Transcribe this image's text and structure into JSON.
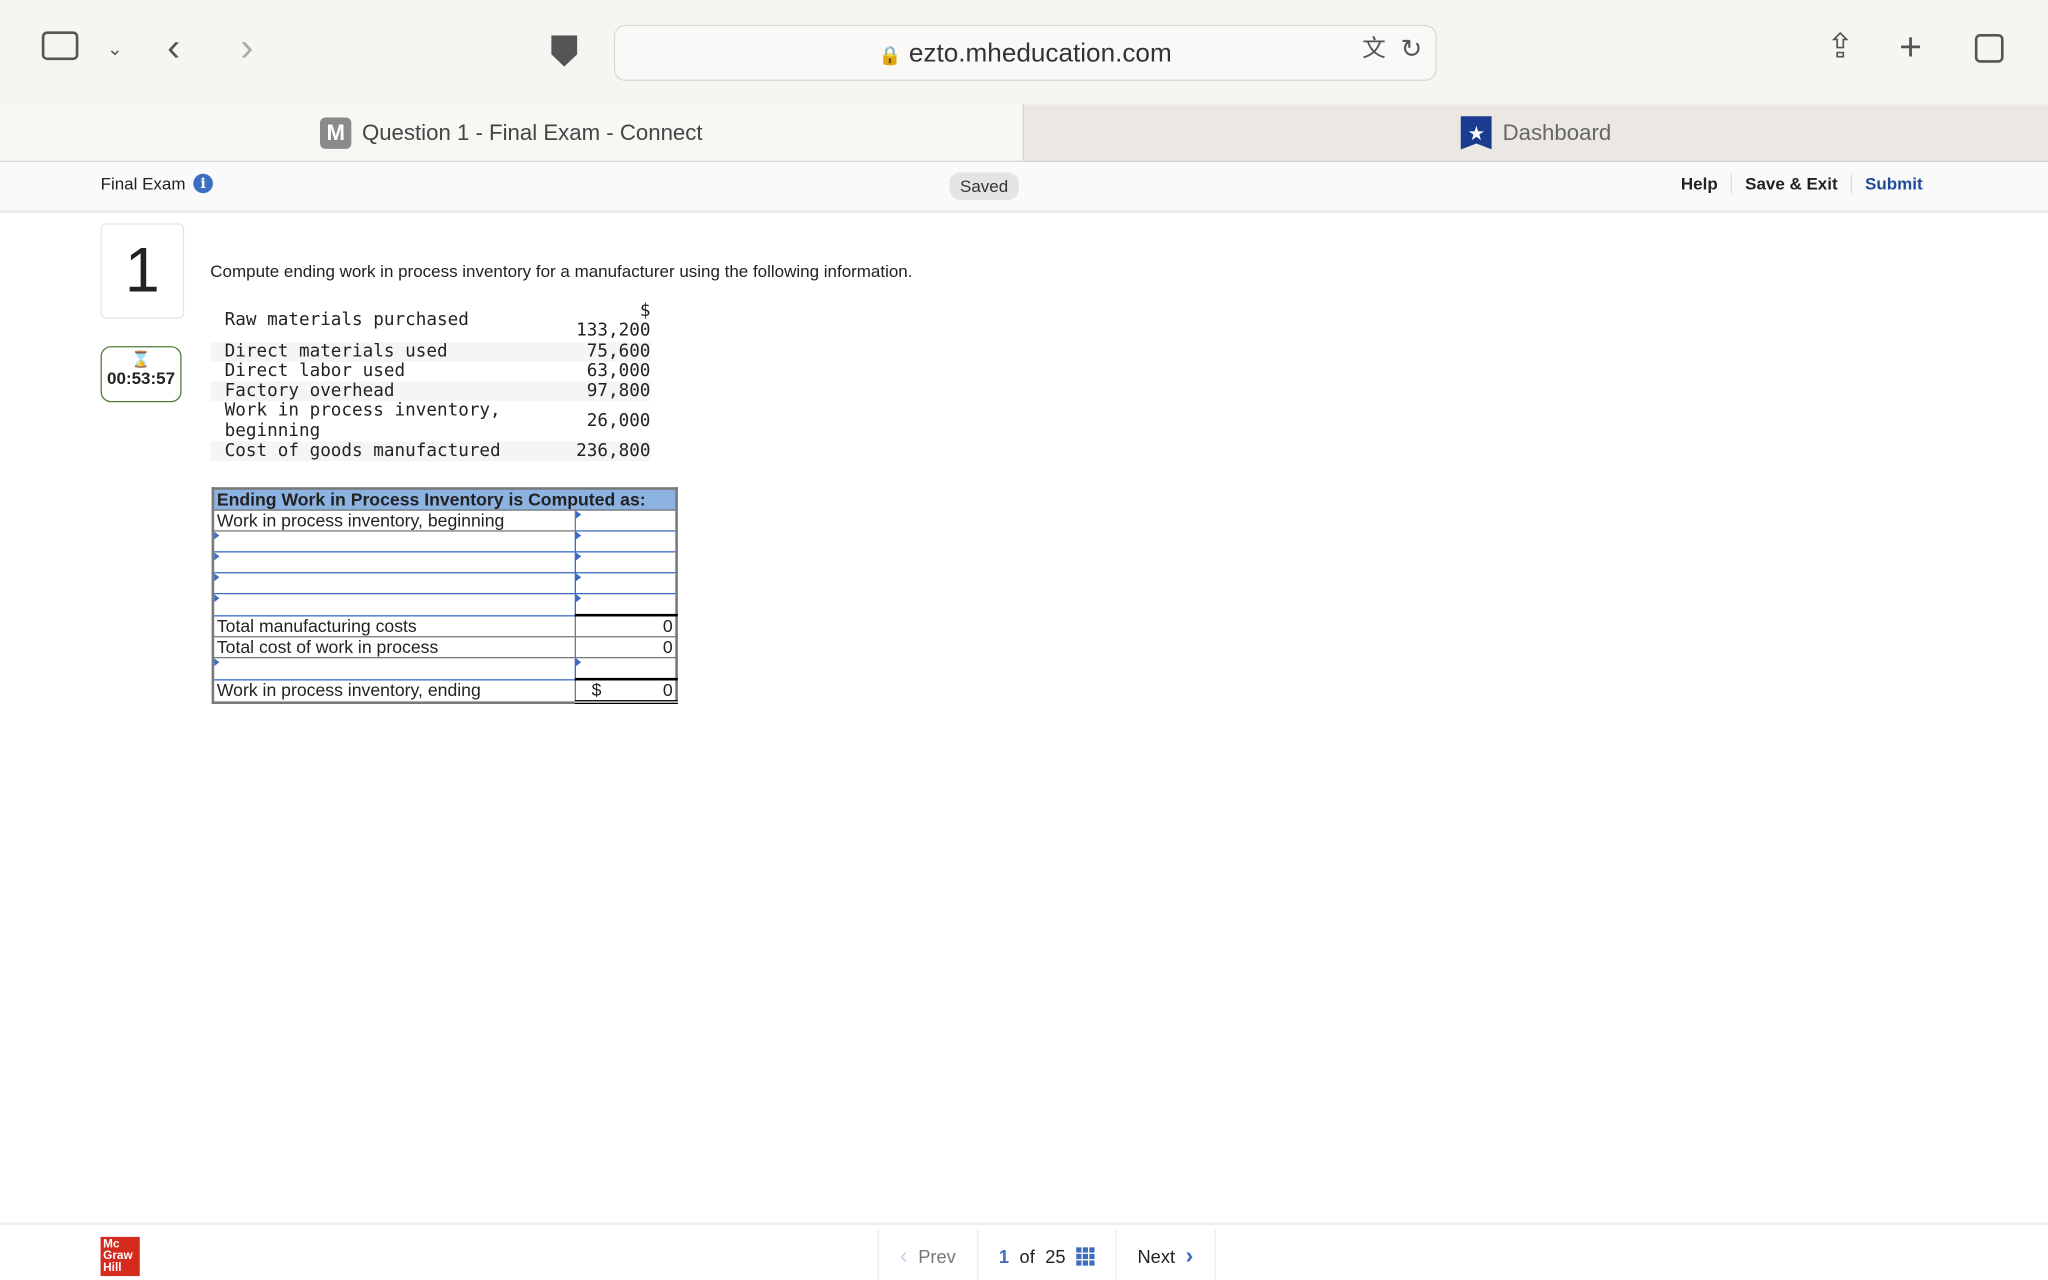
{
  "browser": {
    "url": "ezto.mheducation.com",
    "tabs": [
      {
        "label": "Question 1 - Final Exam - Connect",
        "icon": "M"
      },
      {
        "label": "Dashboard"
      }
    ]
  },
  "header": {
    "title": "Final Exam",
    "saved": "Saved",
    "help": "Help",
    "save_exit": "Save & Exit",
    "submit": "Submit"
  },
  "question": {
    "number": "1",
    "timer": "00:53:57",
    "text": "Compute ending work in process inventory for a manufacturer using the following information.",
    "data": [
      {
        "label": "Raw materials purchased",
        "value": "$\n133,200"
      },
      {
        "label": "Direct materials used",
        "value": "75,600"
      },
      {
        "label": "Direct labor used",
        "value": "63,000"
      },
      {
        "label": "Factory overhead",
        "value": "97,800"
      },
      {
        "label": "Work in process inventory, beginning",
        "value": "26,000"
      },
      {
        "label": "Cost of goods manufactured",
        "value": "236,800"
      }
    ]
  },
  "answer_table": {
    "title": "Ending Work in Process Inventory is Computed as:",
    "row_begin": "Work in process inventory, beginning",
    "total_mfg": "Total manufacturing costs",
    "total_mfg_value": "0",
    "total_wip": "Total cost of work in process",
    "total_wip_value": "0",
    "ending": "Work in process inventory, ending",
    "ending_currency": "$",
    "ending_value": "0"
  },
  "footer": {
    "logo": "Mc Graw Hill",
    "prev": "Prev",
    "current": "1",
    "of": "of",
    "total": "25",
    "next": "Next"
  },
  "colors": {
    "accent": "#3d6cc0",
    "timer": "#4f7d3e",
    "table_header": "#8db3e2",
    "logo": "#d52b1e"
  }
}
